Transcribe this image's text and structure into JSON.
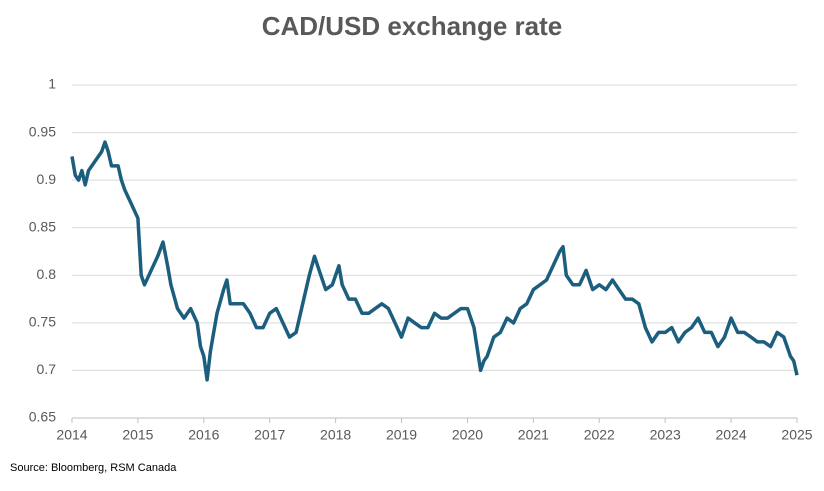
{
  "chart_data": {
    "type": "line",
    "title": "CAD/USD exchange rate",
    "source": "Source: Bloomberg, RSM Canada",
    "color": "#1b5e7e",
    "grid": true,
    "xlim": [
      2014,
      2025
    ],
    "xticks": [
      2014,
      2015,
      2016,
      2017,
      2018,
      2019,
      2020,
      2021,
      2022,
      2023,
      2024,
      2025
    ],
    "ylim": [
      0.65,
      1
    ],
    "yticks": [
      0.65,
      0.7,
      0.75,
      0.8,
      0.85,
      0.9,
      0.95,
      1
    ],
    "x": [
      2014.0,
      2014.05,
      2014.1,
      2014.15,
      2014.2,
      2014.25,
      2014.3,
      2014.35,
      2014.4,
      2014.45,
      2014.5,
      2014.55,
      2014.6,
      2014.7,
      2014.75,
      2014.8,
      2014.9,
      2015.0,
      2015.05,
      2015.1,
      2015.2,
      2015.3,
      2015.38,
      2015.45,
      2015.5,
      2015.6,
      2015.7,
      2015.8,
      2015.9,
      2015.95,
      2016.0,
      2016.05,
      2016.1,
      2016.2,
      2016.3,
      2016.35,
      2016.4,
      2016.5,
      2016.6,
      2016.7,
      2016.8,
      2016.9,
      2017.0,
      2017.1,
      2017.2,
      2017.3,
      2017.4,
      2017.5,
      2017.6,
      2017.68,
      2017.75,
      2017.85,
      2017.95,
      2018.05,
      2018.1,
      2018.2,
      2018.3,
      2018.4,
      2018.5,
      2018.6,
      2018.7,
      2018.8,
      2018.9,
      2019.0,
      2019.1,
      2019.2,
      2019.3,
      2019.4,
      2019.5,
      2019.6,
      2019.7,
      2019.8,
      2019.9,
      2020.0,
      2020.1,
      2020.2,
      2020.25,
      2020.3,
      2020.4,
      2020.5,
      2020.6,
      2020.7,
      2020.8,
      2020.9,
      2021.0,
      2021.1,
      2021.2,
      2021.3,
      2021.4,
      2021.45,
      2021.5,
      2021.6,
      2021.7,
      2021.8,
      2021.9,
      2022.0,
      2022.1,
      2022.2,
      2022.3,
      2022.4,
      2022.5,
      2022.6,
      2022.7,
      2022.8,
      2022.9,
      2023.0,
      2023.1,
      2023.2,
      2023.3,
      2023.4,
      2023.5,
      2023.6,
      2023.7,
      2023.8,
      2023.9,
      2024.0,
      2024.1,
      2024.2,
      2024.3,
      2024.4,
      2024.5,
      2024.6,
      2024.7,
      2024.8,
      2024.9,
      2024.95,
      2025.0
    ],
    "values": [
      0.925,
      0.905,
      0.9,
      0.91,
      0.895,
      0.91,
      0.915,
      0.92,
      0.925,
      0.93,
      0.94,
      0.93,
      0.915,
      0.915,
      0.9,
      0.89,
      0.875,
      0.86,
      0.8,
      0.79,
      0.805,
      0.82,
      0.835,
      0.81,
      0.79,
      0.765,
      0.755,
      0.765,
      0.75,
      0.725,
      0.715,
      0.69,
      0.72,
      0.76,
      0.785,
      0.795,
      0.77,
      0.77,
      0.77,
      0.76,
      0.745,
      0.745,
      0.76,
      0.765,
      0.75,
      0.735,
      0.74,
      0.77,
      0.8,
      0.82,
      0.805,
      0.785,
      0.79,
      0.81,
      0.79,
      0.775,
      0.775,
      0.76,
      0.76,
      0.765,
      0.77,
      0.765,
      0.75,
      0.735,
      0.755,
      0.75,
      0.745,
      0.745,
      0.76,
      0.755,
      0.755,
      0.76,
      0.765,
      0.765,
      0.745,
      0.7,
      0.71,
      0.715,
      0.735,
      0.74,
      0.755,
      0.75,
      0.765,
      0.77,
      0.785,
      0.79,
      0.795,
      0.81,
      0.825,
      0.83,
      0.8,
      0.79,
      0.79,
      0.805,
      0.785,
      0.79,
      0.785,
      0.795,
      0.785,
      0.775,
      0.775,
      0.77,
      0.745,
      0.73,
      0.74,
      0.74,
      0.745,
      0.73,
      0.74,
      0.745,
      0.755,
      0.74,
      0.74,
      0.725,
      0.735,
      0.755,
      0.74,
      0.74,
      0.735,
      0.73,
      0.73,
      0.725,
      0.74,
      0.735,
      0.715,
      0.71,
      0.695
    ]
  }
}
